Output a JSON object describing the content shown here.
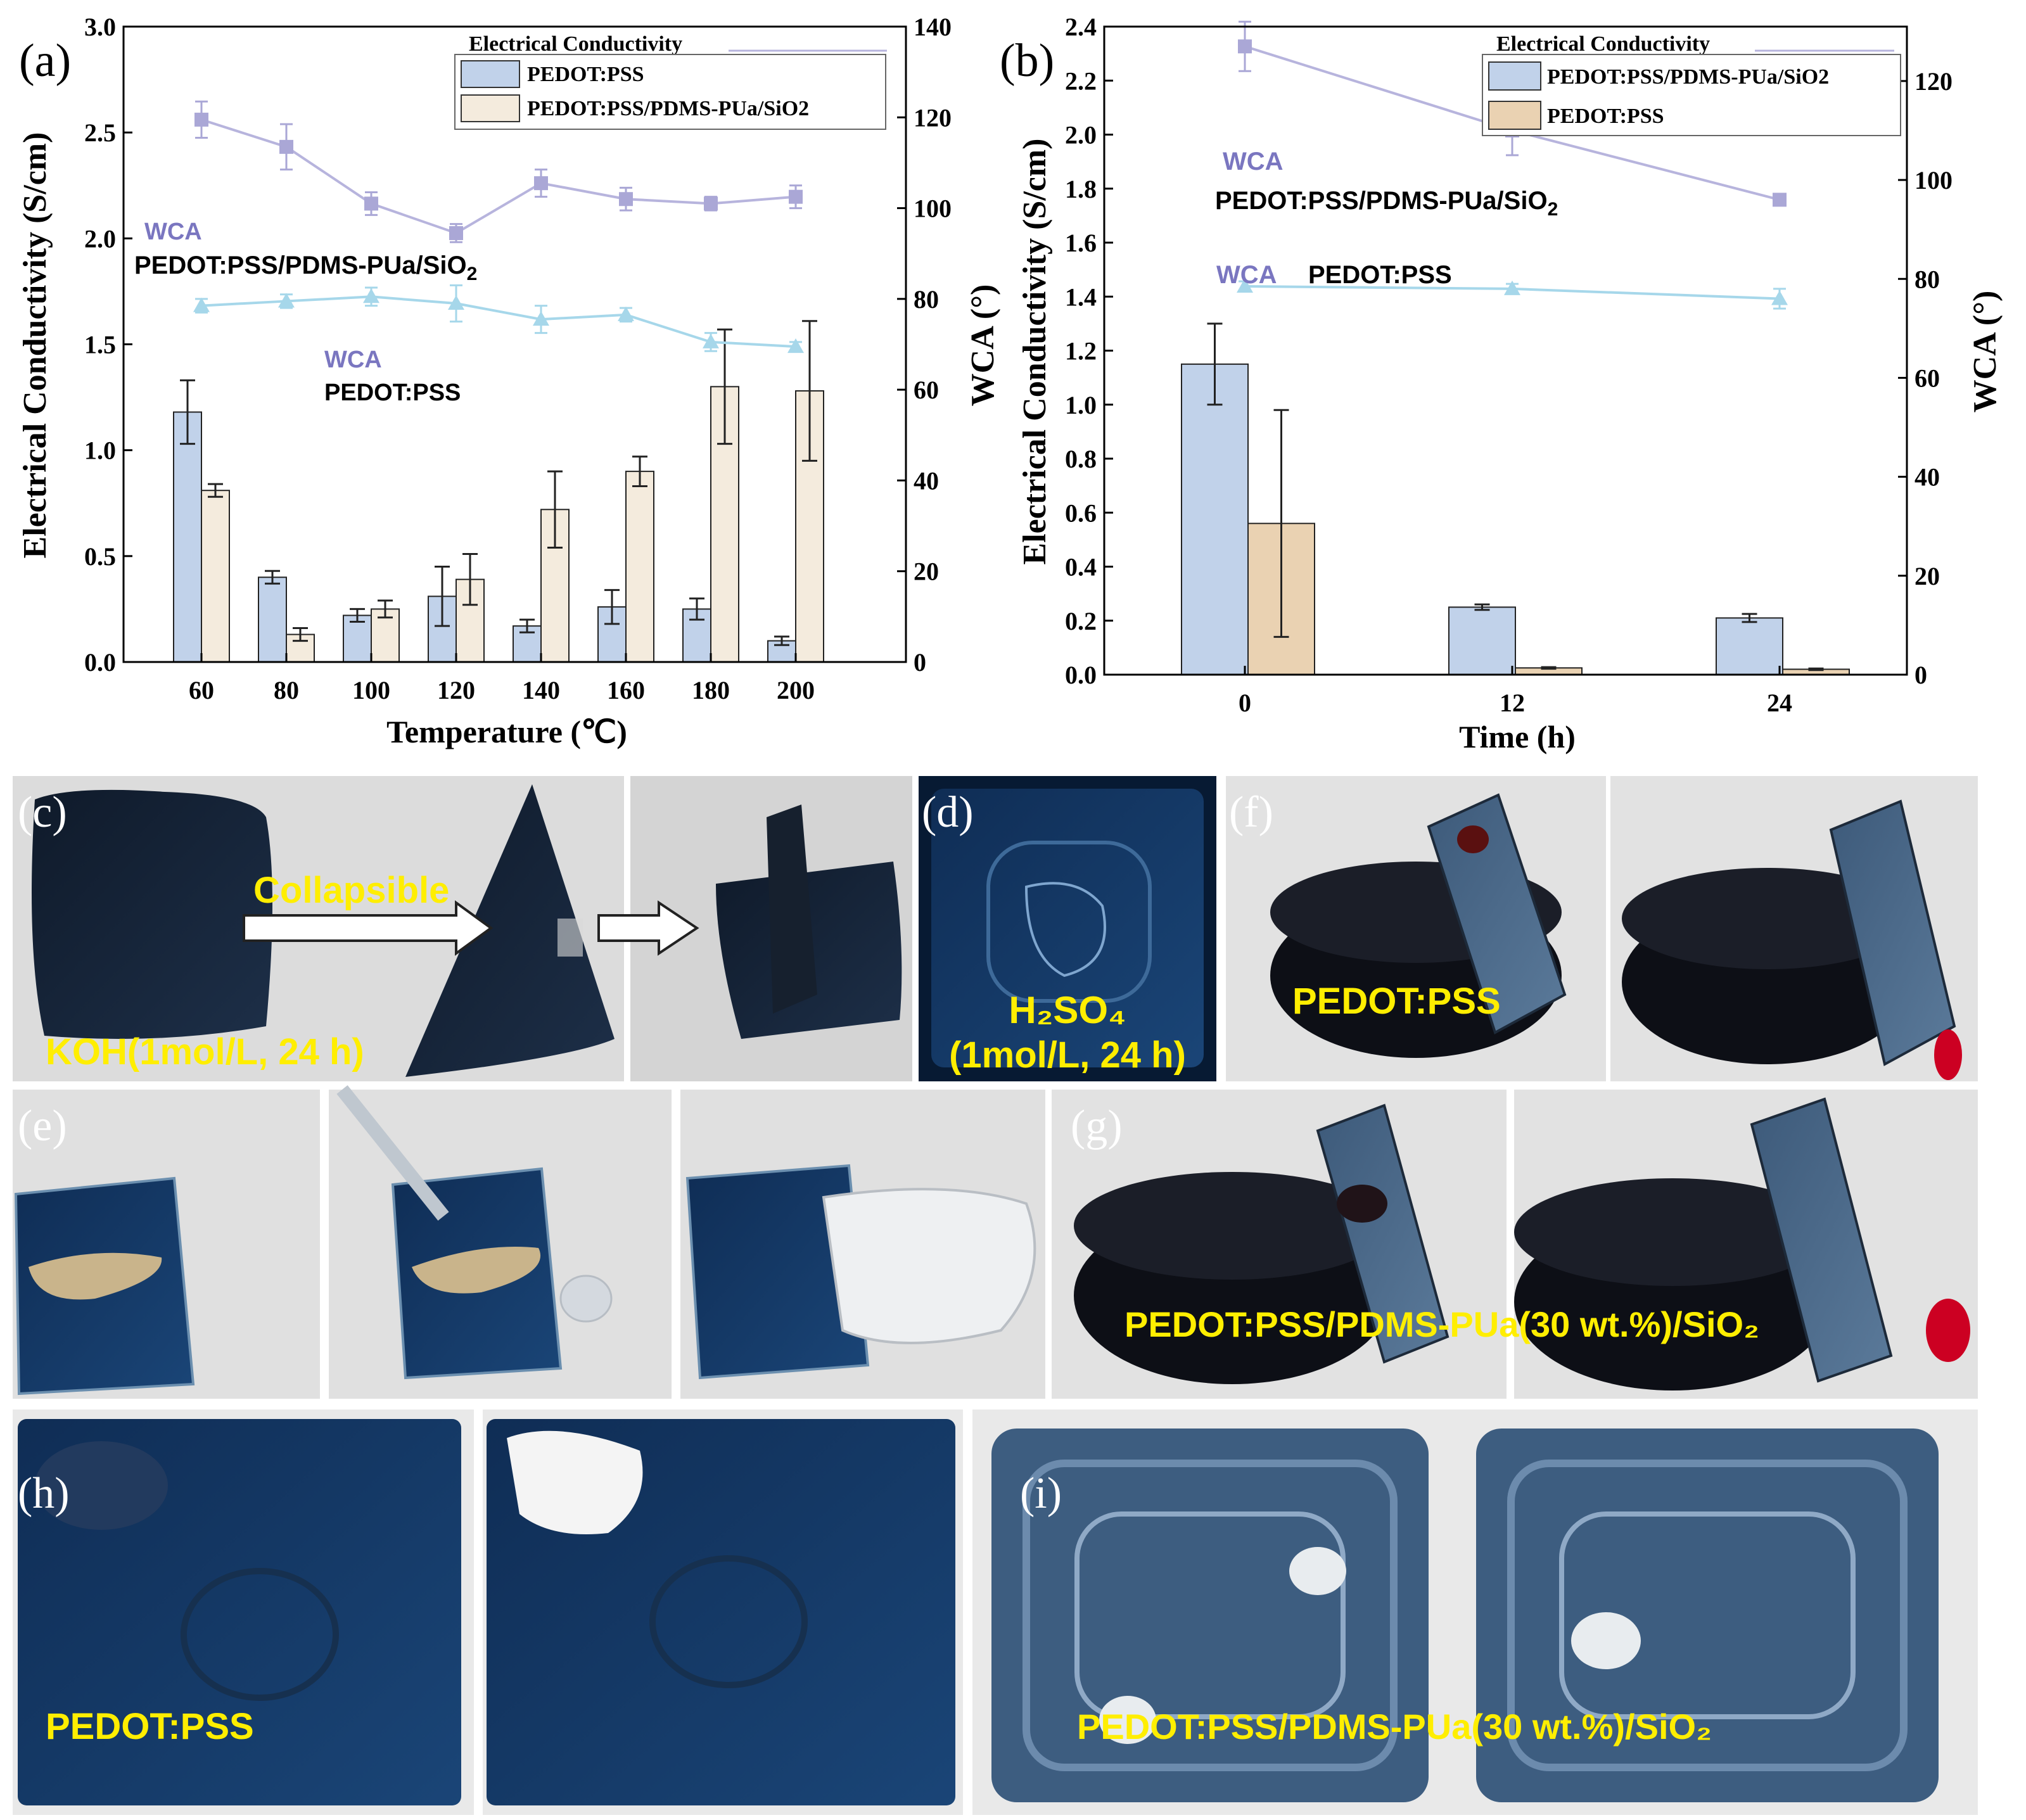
{
  "colors": {
    "wca_series": "#b7b4dd",
    "wca_marker_comp": "#aaa7d6",
    "wca_pedot": "#a6d7ea",
    "bar_pedot": "#c1d2ea",
    "bar_comp": "#f4ebdd",
    "bar_b_pedot": "#ead2b2",
    "annot_wca": "#7a76c0",
    "photo_caption": "#ffee00",
    "axis": "#000000",
    "photo_bg": "#dcdcdc"
  },
  "chart_data": [
    {
      "panel_label": "(a)",
      "type": "bar",
      "xlabel": "Temperature (℃)",
      "ylabel_left": "Electrical Conductivity (S/cm)",
      "ylabel_right": "WCA (°)",
      "categories": [
        "60",
        "80",
        "100",
        "120",
        "140",
        "160",
        "180",
        "200"
      ],
      "ylim_left": [
        0,
        3.0
      ],
      "ylim_right": [
        0,
        140
      ],
      "yticks_left": [
        "0.0",
        "0.5",
        "1.0",
        "1.5",
        "2.0",
        "2.5",
        "3.0"
      ],
      "yticks_right": [
        "0",
        "20",
        "40",
        "60",
        "80",
        "100",
        "120",
        "140"
      ],
      "legend_title": "Electrical Conductivity",
      "legend_placement": "top-right",
      "bar_series": [
        {
          "name": "PEDOT:PSS",
          "values": [
            1.18,
            0.4,
            0.22,
            0.31,
            0.17,
            0.26,
            0.25,
            0.1
          ],
          "errors": [
            0.15,
            0.03,
            0.03,
            0.14,
            0.03,
            0.08,
            0.05,
            0.02
          ]
        },
        {
          "name": "PEDOT:PSS/PDMS-PUa/SiO2",
          "values": [
            0.81,
            0.13,
            0.25,
            0.39,
            0.72,
            0.9,
            1.3,
            1.28
          ],
          "errors": [
            0.03,
            0.03,
            0.04,
            0.12,
            0.18,
            0.07,
            0.27,
            0.33
          ]
        }
      ],
      "line_series": [
        {
          "values": [
            119.5,
            113.5,
            101,
            94.5,
            105.5,
            102,
            101,
            102.5
          ],
          "errors": [
            4,
            5,
            2.5,
            2,
            3,
            2.5,
            1.5,
            2.5
          ],
          "marker": "square"
        },
        {
          "values": [
            78.5,
            79.5,
            80.5,
            79,
            75.5,
            76.5,
            70.5,
            69.5
          ],
          "errors": [
            1.5,
            1.5,
            2,
            4,
            3,
            1.5,
            2,
            1
          ],
          "marker": "triangle"
        }
      ],
      "annotations": {
        "wca_1": "WCA",
        "comp_1": "PEDOT:PSS/PDMS-PUa/SiO",
        "comp_1_sub": "2",
        "wca_2": "WCA",
        "pedot_2": "PEDOT:PSS"
      }
    },
    {
      "panel_label": "(b)",
      "type": "bar",
      "xlabel": "Time (h)",
      "ylabel_left": "Electrical Conductivity (S/cm)",
      "ylabel_right": "WCA (°)",
      "categories": [
        "0",
        "12",
        "24"
      ],
      "ylim_left": [
        0,
        2.4
      ],
      "ylim_right": [
        0,
        131
      ],
      "yticks_left": [
        "0.0",
        "0.2",
        "0.4",
        "0.6",
        "0.8",
        "1.0",
        "1.2",
        "1.4",
        "1.6",
        "1.8",
        "2.0",
        "2.2",
        "2.4"
      ],
      "yticks_right": [
        "0",
        "20",
        "40",
        "60",
        "80",
        "100",
        "120"
      ],
      "legend_title": "Electrical Conductivity",
      "legend_placement": "top-right",
      "bar_series": [
        {
          "name": "PEDOT:PSS/PDMS-PUa/SiO2",
          "values": [
            1.15,
            0.25,
            0.21
          ],
          "errors": [
            0.15,
            0.01,
            0.015
          ]
        },
        {
          "name": "PEDOT:PSS",
          "values": [
            0.56,
            0.025,
            0.02
          ],
          "errors": [
            0.42,
            0.003,
            0.003
          ]
        }
      ],
      "line_series": [
        {
          "values": [
            127,
            110,
            96
          ],
          "errors": [
            5,
            5,
            1
          ],
          "marker": "square"
        },
        {
          "values": [
            78.5,
            78,
            76
          ],
          "errors": [
            1,
            1,
            2
          ],
          "marker": "triangle"
        }
      ],
      "annotations": {
        "wca_1": "WCA",
        "comp_1": "PEDOT:PSS/PDMS-PUa/SiO",
        "comp_1_sub": "2",
        "wca_2": "WCA",
        "pedot_2": "PEDOT:PSS"
      }
    }
  ],
  "photos": {
    "c": {
      "label": "(c)",
      "caption": "KOH(1mol/L, 24 h)",
      "arrow_text": "Collapsible"
    },
    "d": {
      "label": "(d)",
      "caption_line1": "H₂SO₄",
      "caption_line2": "(1mol/L, 24 h)"
    },
    "e": {
      "label": "(e)"
    },
    "f": {
      "label": "(f)",
      "caption": "PEDOT:PSS"
    },
    "g": {
      "label": "(g)",
      "caption": "PEDOT:PSS/PDMS-PUa(30 wt.%)/SiO₂"
    },
    "h": {
      "label": "(h)",
      "caption": "PEDOT:PSS"
    },
    "i": {
      "label": "(i)",
      "caption": "PEDOT:PSS/PDMS-PUa(30 wt.%)/SiO₂"
    }
  }
}
